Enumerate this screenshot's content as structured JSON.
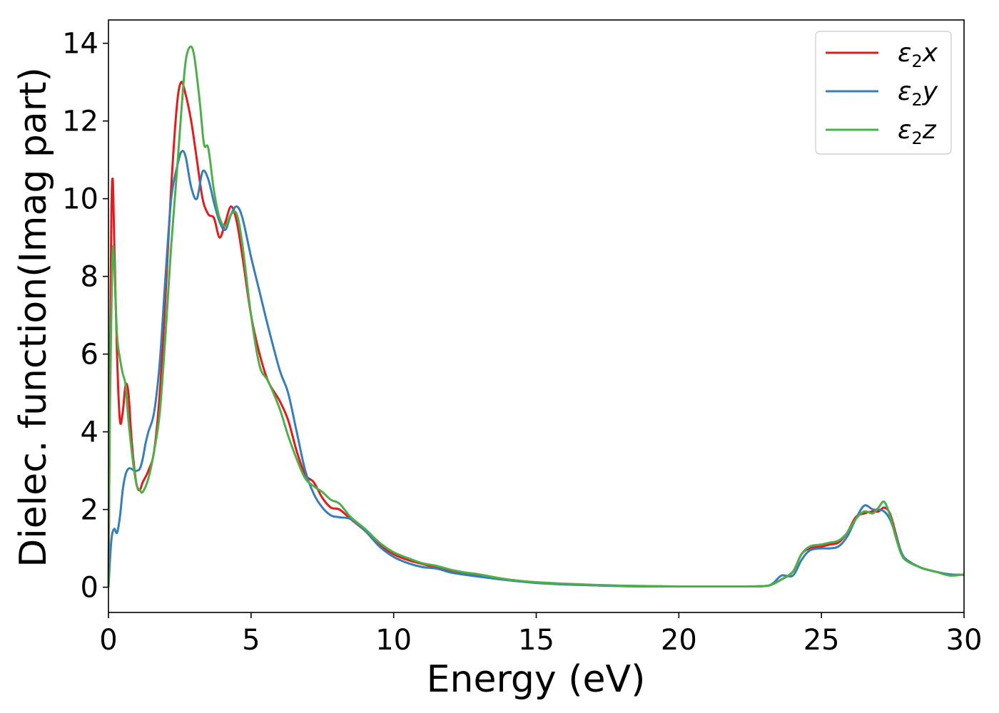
{
  "chart_data": {
    "type": "line",
    "title": "",
    "xlabel": "Energy (eV)",
    "ylabel": "Dielec. function(Imag part)",
    "xlim": [
      0,
      30
    ],
    "ylim": [
      -0.65,
      14.6
    ],
    "xticks": [
      0,
      5,
      10,
      15,
      20,
      25,
      30
    ],
    "yticks": [
      0,
      2,
      4,
      6,
      8,
      10,
      12,
      14
    ],
    "grid": false,
    "legend_position": "top-right",
    "series": [
      {
        "name": "ε2x",
        "symbol": "ε",
        "subscript": "2",
        "suffix": "x",
        "color": "#e41a1c",
        "x": [
          0,
          0.05,
          0.1,
          0.15,
          0.2,
          0.3,
          0.4,
          0.5,
          0.6,
          0.7,
          0.8,
          0.9,
          1.0,
          1.1,
          1.2,
          1.4,
          1.6,
          1.8,
          2.0,
          2.2,
          2.4,
          2.55,
          2.7,
          2.9,
          3.1,
          3.3,
          3.5,
          3.7,
          3.9,
          4.1,
          4.3,
          4.5,
          4.7,
          5.0,
          5.3,
          5.6,
          6.0,
          6.3,
          6.6,
          6.9,
          7.2,
          7.5,
          7.8,
          8.1,
          8.5,
          9.0,
          9.5,
          10,
          10.5,
          11,
          11.5,
          12,
          12.5,
          13,
          14,
          15,
          16,
          17,
          18,
          19,
          20,
          21,
          22,
          23,
          23.3,
          23.6,
          24,
          24.3,
          24.6,
          25,
          25.3,
          25.6,
          25.9,
          26.2,
          26.5,
          26.8,
          27.0,
          27.2,
          27.4,
          27.6,
          27.8,
          28,
          28.5,
          29,
          29.5,
          30
        ],
        "y": [
          0,
          5.0,
          9.5,
          10.5,
          9.0,
          6.0,
          4.3,
          4.5,
          5.2,
          5.0,
          3.9,
          3.1,
          2.6,
          2.5,
          2.7,
          3.0,
          3.5,
          5.0,
          7.5,
          10.3,
          12.4,
          13.0,
          12.7,
          12.0,
          11.0,
          10.0,
          9.6,
          9.5,
          9.0,
          9.4,
          9.8,
          9.4,
          8.5,
          7.0,
          6.0,
          5.3,
          4.8,
          4.3,
          3.5,
          2.9,
          2.7,
          2.3,
          2.05,
          2.0,
          1.75,
          1.45,
          1.1,
          0.85,
          0.7,
          0.6,
          0.5,
          0.4,
          0.35,
          0.3,
          0.2,
          0.12,
          0.08,
          0.05,
          0.03,
          0.02,
          0.02,
          0.02,
          0.02,
          0.03,
          0.08,
          0.2,
          0.4,
          0.85,
          1.0,
          1.05,
          1.1,
          1.15,
          1.4,
          1.8,
          1.9,
          1.95,
          1.95,
          2.05,
          1.9,
          1.4,
          0.9,
          0.7,
          0.5,
          0.4,
          0.33,
          0.32
        ]
      },
      {
        "name": "ε2y",
        "symbol": "ε",
        "subscript": "2",
        "suffix": "y",
        "color": "#377eb8",
        "x": [
          0,
          0.1,
          0.2,
          0.3,
          0.4,
          0.5,
          0.6,
          0.7,
          0.8,
          0.9,
          1.0,
          1.1,
          1.2,
          1.3,
          1.4,
          1.6,
          1.8,
          2.0,
          2.2,
          2.4,
          2.55,
          2.7,
          2.9,
          3.1,
          3.3,
          3.5,
          3.7,
          3.9,
          4.1,
          4.3,
          4.5,
          4.7,
          5.0,
          5.3,
          5.6,
          6.0,
          6.3,
          6.6,
          6.9,
          7.2,
          7.5,
          7.8,
          8.1,
          8.5,
          9.0,
          9.5,
          10,
          10.5,
          11,
          11.5,
          12,
          12.5,
          13,
          14,
          15,
          16,
          17,
          18,
          19,
          20,
          21,
          22,
          23,
          23.3,
          23.6,
          24,
          24.3,
          24.6,
          25,
          25.3,
          25.6,
          25.9,
          26.2,
          26.5,
          26.8,
          27.0,
          27.2,
          27.4,
          27.6,
          27.8,
          28,
          28.5,
          29,
          29.5,
          30
        ],
        "y": [
          0,
          1.2,
          1.5,
          1.4,
          1.8,
          2.5,
          2.9,
          3.05,
          3.05,
          3.0,
          3.0,
          3.05,
          3.3,
          3.7,
          4.0,
          4.5,
          5.8,
          8.0,
          10.0,
          10.8,
          11.2,
          11.1,
          10.3,
          10.0,
          10.7,
          10.5,
          9.9,
          9.4,
          9.2,
          9.6,
          9.8,
          9.5,
          8.5,
          7.6,
          6.7,
          5.6,
          5.0,
          4.0,
          3.0,
          2.4,
          2.05,
          1.85,
          1.8,
          1.75,
          1.45,
          1.05,
          0.78,
          0.62,
          0.52,
          0.48,
          0.38,
          0.32,
          0.27,
          0.18,
          0.11,
          0.07,
          0.05,
          0.03,
          0.02,
          0.02,
          0.02,
          0.02,
          0.03,
          0.1,
          0.3,
          0.3,
          0.7,
          0.95,
          1.0,
          1.0,
          1.05,
          1.3,
          1.75,
          2.1,
          2.0,
          2.0,
          1.95,
          1.75,
          1.35,
          0.9,
          0.7,
          0.5,
          0.4,
          0.33,
          0.32
        ]
      },
      {
        "name": "ε2z",
        "symbol": "ε",
        "subscript": "2",
        "suffix": "z",
        "color": "#4daf4a",
        "x": [
          0,
          0.05,
          0.1,
          0.15,
          0.2,
          0.3,
          0.4,
          0.5,
          0.6,
          0.7,
          0.8,
          0.9,
          1.0,
          1.1,
          1.2,
          1.4,
          1.6,
          1.8,
          2.0,
          2.2,
          2.4,
          2.55,
          2.7,
          2.85,
          3.0,
          3.2,
          3.35,
          3.5,
          3.7,
          3.9,
          4.1,
          4.3,
          4.5,
          4.7,
          5.0,
          5.3,
          5.6,
          6.0,
          6.3,
          6.6,
          6.9,
          7.2,
          7.5,
          7.8,
          8.1,
          8.5,
          9.0,
          9.5,
          10,
          10.5,
          11,
          11.5,
          12,
          12.5,
          13,
          14,
          15,
          16,
          17,
          18,
          19,
          20,
          21,
          22,
          23,
          23.3,
          23.6,
          24,
          24.3,
          24.6,
          25,
          25.3,
          25.6,
          25.9,
          26.2,
          26.5,
          26.8,
          27.0,
          27.2,
          27.4,
          27.6,
          27.8,
          28,
          28.5,
          29,
          29.5,
          30
        ],
        "y": [
          0,
          4.5,
          7.0,
          8.7,
          8.3,
          6.5,
          5.9,
          5.5,
          5.2,
          4.3,
          3.6,
          3.0,
          2.6,
          2.5,
          2.45,
          2.8,
          3.5,
          4.5,
          6.5,
          8.8,
          10.7,
          12.2,
          13.5,
          13.9,
          13.7,
          12.5,
          11.4,
          11.3,
          10.2,
          9.5,
          9.3,
          9.6,
          9.6,
          8.8,
          7.0,
          5.7,
          5.3,
          4.6,
          3.9,
          3.3,
          2.8,
          2.6,
          2.45,
          2.25,
          2.15,
          1.8,
          1.5,
          1.15,
          0.9,
          0.75,
          0.62,
          0.55,
          0.45,
          0.38,
          0.33,
          0.2,
          0.13,
          0.09,
          0.06,
          0.04,
          0.03,
          0.02,
          0.02,
          0.02,
          0.03,
          0.08,
          0.2,
          0.4,
          0.85,
          1.05,
          1.1,
          1.15,
          1.2,
          1.4,
          1.75,
          1.95,
          1.9,
          2.05,
          2.2,
          1.85,
          1.3,
          0.85,
          0.67,
          0.5,
          0.4,
          0.3,
          0.33
        ]
      }
    ]
  }
}
